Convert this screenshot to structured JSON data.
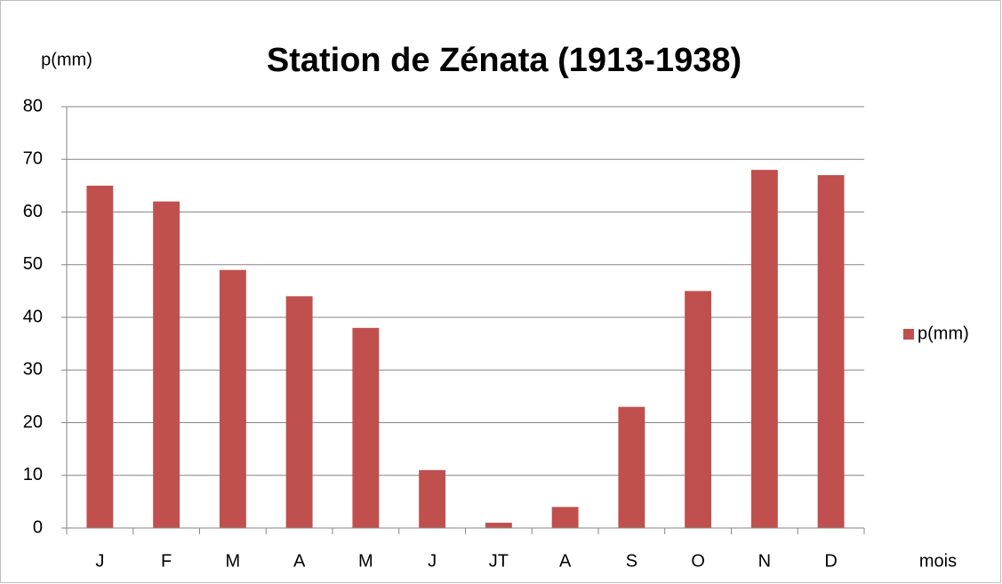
{
  "chart_data": {
    "type": "bar",
    "title": "Station de Zénata (1913-1938)",
    "y_label": "p(mm)",
    "x_label": "mois",
    "categories": [
      "J",
      "F",
      "M",
      "A",
      "M",
      "J",
      "JT",
      "A",
      "S",
      "O",
      "N",
      "D"
    ],
    "series": [
      {
        "name": "p(mm)",
        "color": "#c0504d",
        "values": [
          65,
          62,
          49,
          44,
          38,
          11,
          1,
          4,
          23,
          45,
          68,
          67
        ]
      }
    ],
    "ylim": [
      0,
      80
    ],
    "yticks": [
      0,
      10,
      20,
      30,
      40,
      50,
      60,
      70,
      80
    ],
    "grid": true,
    "legend": "right"
  }
}
